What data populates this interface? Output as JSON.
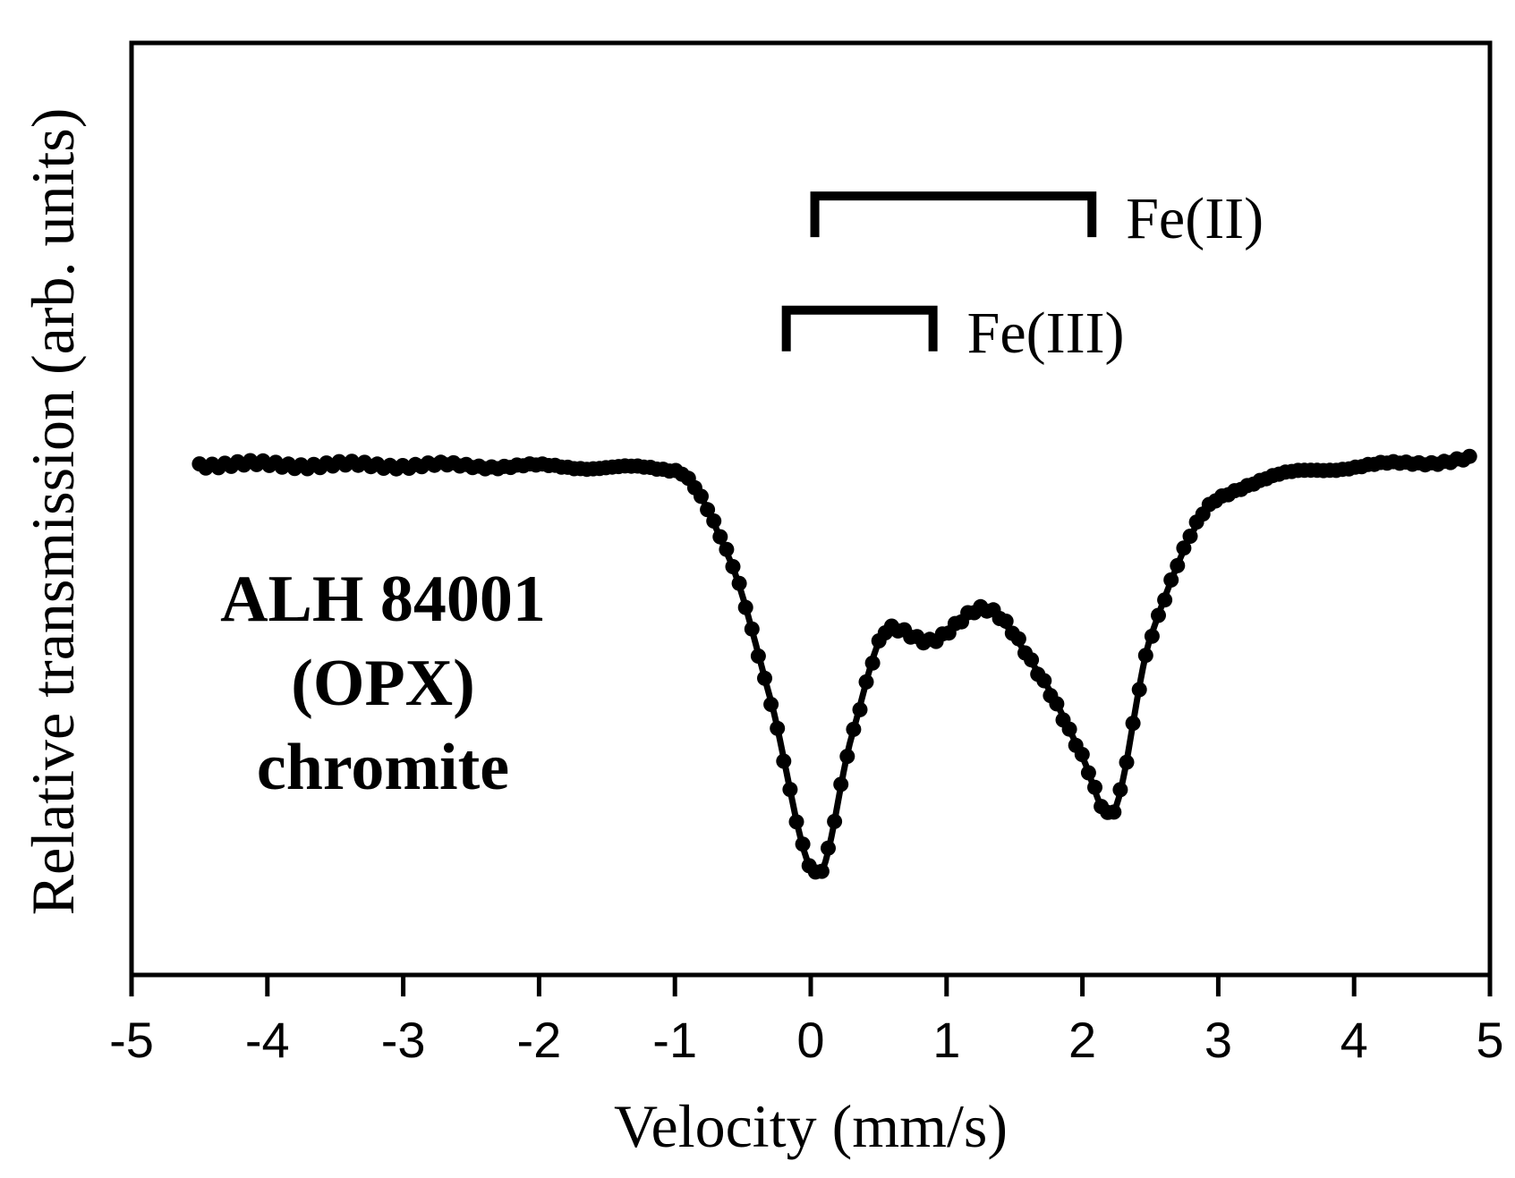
{
  "chart_data": {
    "type": "scatter",
    "title": "",
    "xlabel": "Velocity (mm/s)",
    "ylabel": "Relative transmission (arb. units)",
    "xlim": [
      -5,
      5
    ],
    "ylim": [
      0,
      1
    ],
    "xticks": [
      "-5",
      "-4",
      "-3",
      "-2",
      "-1",
      "0",
      "1",
      "2",
      "3",
      "4",
      "5"
    ],
    "yticks_shown": false,
    "grid": false,
    "legend": "none",
    "baseline": 0.93,
    "x_range": [
      -4.5,
      4.85
    ],
    "doublets": [
      {
        "name": "Fe(II)",
        "centers": [
          0.03,
          2.07
        ],
        "depth": 0.32,
        "width": 0.36
      },
      {
        "name": "Fe(III)",
        "centers": [
          -0.18,
          0.9
        ],
        "depth": 0.14,
        "width": 0.3
      }
    ],
    "marked_points": [
      {
        "x": -4.5,
        "y": 0.93
      },
      {
        "x": -1.0,
        "y": 0.92
      },
      {
        "x": -0.6,
        "y": 0.74
      },
      {
        "x": -0.3,
        "y": 0.46
      },
      {
        "x": 0.05,
        "y": 0.1
      },
      {
        "x": 0.3,
        "y": 0.38
      },
      {
        "x": 0.58,
        "y": 0.6
      },
      {
        "x": 0.85,
        "y": 0.57
      },
      {
        "x": 1.25,
        "y": 0.64
      },
      {
        "x": 1.7,
        "y": 0.5
      },
      {
        "x": 2.0,
        "y": 0.34
      },
      {
        "x": 2.2,
        "y": 0.22
      },
      {
        "x": 2.5,
        "y": 0.58
      },
      {
        "x": 3.0,
        "y": 0.86
      },
      {
        "x": 3.5,
        "y": 0.91
      },
      {
        "x": 4.85,
        "y": 0.94
      }
    ],
    "annotations": {
      "sample_lines": [
        "ALH 84001",
        "(OPX)",
        "chromite"
      ],
      "brackets": [
        {
          "label": "Fe(II)",
          "x_start": 0.03,
          "x_end": 2.07,
          "level": 1.47
        },
        {
          "label": "Fe(III)",
          "x_start": -0.18,
          "x_end": 0.9,
          "level": 1.24
        }
      ]
    },
    "color": "#000000"
  }
}
